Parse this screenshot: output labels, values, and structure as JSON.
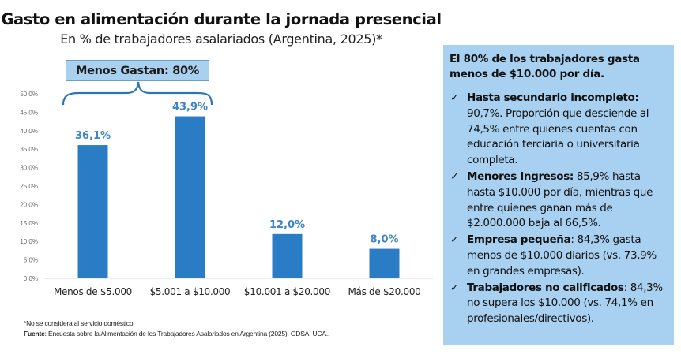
{
  "title": "Gasto en alimentación durante la jornada presencial",
  "subtitle": "En % de trabajadores asalariados (Argentina, 2025)*",
  "annotation": {
    "label": "Menos Gastan: 80%",
    "spans_categories": [
      "Menos de $5.000",
      "$5.001 a $10.000"
    ]
  },
  "colors": {
    "bar": "#2a7dc4",
    "data_label": "#3d85c6",
    "annotation_fill": "#a9d0ef",
    "brace": "#2e75b6",
    "side_panel": "#a8d0f0"
  },
  "chart_data": {
    "type": "bar",
    "title": "Gasto en alimentación durante la jornada presencial",
    "subtitle": "En % de trabajadores asalariados (Argentina, 2025)*",
    "categories": [
      "Menos de $5.000",
      "$5.001 a $10.000",
      "$10.001 a $20.000",
      "Más de $20.000"
    ],
    "values": [
      36.1,
      43.9,
      12.0,
      8.0
    ],
    "data_labels": [
      "36,1%",
      "43,9%",
      "12,0%",
      "8,0%"
    ],
    "xlabel": "",
    "ylabel": "",
    "ylim": [
      0,
      50
    ],
    "yticks": [
      "0,0%",
      "5,0%",
      "10,0%",
      "15,0%",
      "20,0%",
      "25,0%",
      "30,0%",
      "35,0%",
      "40,0%",
      "45,0%",
      "50,0%"
    ],
    "grid": false,
    "legend": "none"
  },
  "footnotes": {
    "note": "*No se considera al servicio doméstico.",
    "source_label": "Fuente",
    "source_text": ": Encuesta sobre la Alimentación de los Trabajadores Asalariados en Argentina (2025). ODSA, UCA.."
  },
  "side_panel": {
    "headline": "El 80% de los trabajadores gasta menos de $10.000 por día.",
    "check_icon": "✓",
    "items": [
      {
        "bold": "Hasta secundario incompleto:",
        "text": " 90,7%. Proporción que desciende al 74,5% entre quienes cuentas con educación terciaria o universitaria completa."
      },
      {
        "bold": "Menores Ingresos:",
        "text": " 85,9% hasta hasta $10.000 por día, mientras que entre quienes ganan más de $2.000.000 baja al 66,5%."
      },
      {
        "bold": "Empresa pequeña",
        "text": ": 84,3% gasta menos de $10.000 diarios (vs. 73,9% en grandes empresas)."
      },
      {
        "bold": "Trabajadores no calificados",
        "text": ": 84,3% no supera los $10.000 (vs. 74,1% en profesionales/directivos)."
      }
    ]
  }
}
